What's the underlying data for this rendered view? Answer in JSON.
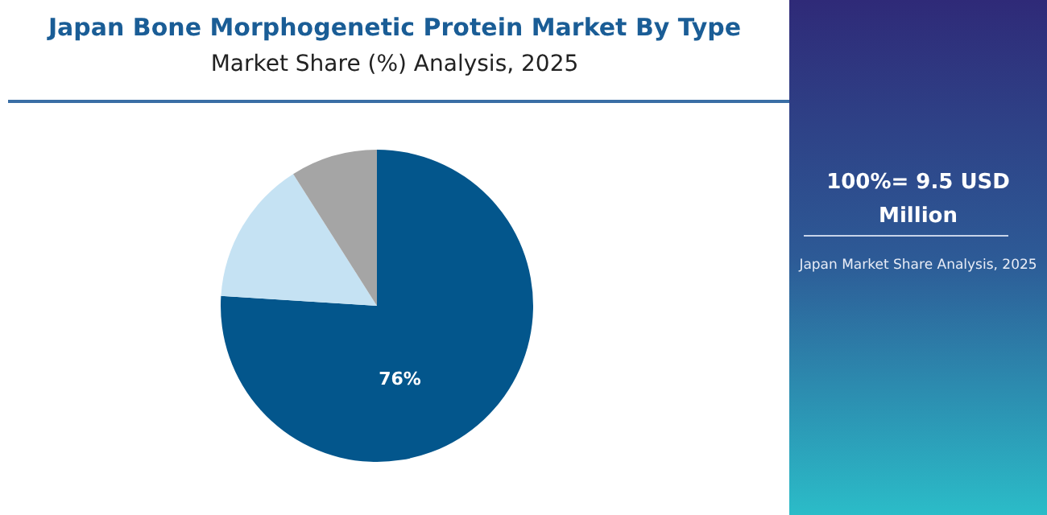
{
  "chart_data": {
    "type": "pie",
    "title": "Japan Bone Morphogenetic Protein Market By Type",
    "subtitle": "Market Share (%) Analysis, 2025",
    "categories": [
      null,
      null,
      null
    ],
    "values": [
      76,
      15,
      9
    ],
    "colors": [
      "#03568c",
      "#c5e2f3",
      "#a5a5a5"
    ],
    "value_labels": [
      "76%",
      null,
      null
    ],
    "annotations": [
      "100%= 9.5 USD Million",
      "Japan Market Share Analysis, 2025"
    ]
  }
}
